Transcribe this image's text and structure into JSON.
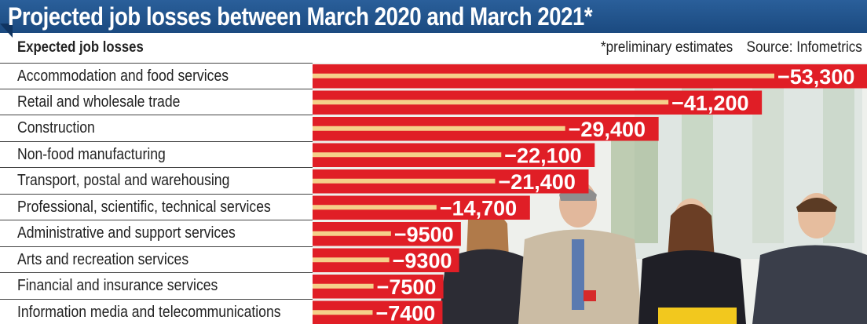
{
  "title": "Projected job losses between March 2020 and March 2021*",
  "header": {
    "left_label": "Expected job losses",
    "note": "*preliminary estimates",
    "source": "Source: Infometrics"
  },
  "colors": {
    "title_bg": "#1e4f88",
    "bar_red": "#e01e26",
    "bar_line": "#f5d08a"
  },
  "chart_data": {
    "type": "bar",
    "orientation": "horizontal",
    "categories": [
      "Accommodation and food services",
      "Retail and wholesale trade",
      "Construction",
      "Non-food manufacturing",
      "Transport, postal and warehousing",
      "Professional, scientific, technical services",
      "Administrative and support services",
      "Arts and recreation services",
      "Financial and insurance services",
      "Information media and telecommunications"
    ],
    "values": [
      -53300,
      -41200,
      -29400,
      -22100,
      -21400,
      -14700,
      -9500,
      -9300,
      -7500,
      -7400
    ],
    "value_labels": [
      "−53,300",
      "−41,200",
      "−29,400",
      "−22,100",
      "−21,400",
      "−14,700",
      "−9500",
      "−9300",
      "−7500",
      "−7400"
    ],
    "title": "Projected job losses between March 2020 and March 2021*",
    "xlabel": "",
    "ylabel": "Expected job losses",
    "grid": false,
    "legend": "none"
  }
}
